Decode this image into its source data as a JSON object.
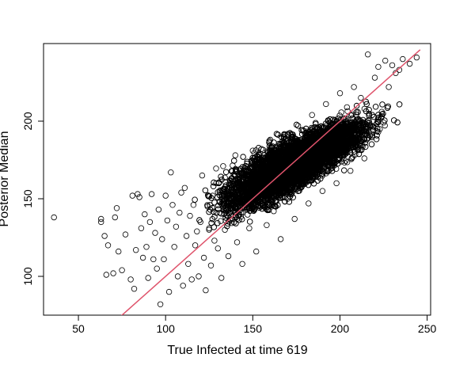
{
  "chart_data": {
    "type": "scatter",
    "title": "",
    "xlabel": "True Infected at time 619",
    "ylabel": "Posterior Median",
    "xlim": [
      30,
      252
    ],
    "ylim": [
      75,
      250
    ],
    "x_ticks": [
      50,
      100,
      150,
      200,
      250
    ],
    "y_ticks": [
      100,
      150,
      200
    ],
    "grid": false,
    "legend": "none",
    "marker": "open-circle",
    "point_color": "#000000",
    "reference_line": {
      "kind": "y=x",
      "color": "#DF536B",
      "from": [
        74,
        74
      ],
      "to": [
        246,
        246
      ]
    },
    "point_count_approx": 10000,
    "points": [
      [
        36,
        138
      ],
      [
        63,
        137
      ],
      [
        63,
        135
      ],
      [
        65,
        126
      ],
      [
        66,
        101
      ],
      [
        67,
        120
      ],
      [
        70,
        102
      ],
      [
        71,
        138
      ],
      [
        72,
        144
      ],
      [
        73,
        116
      ],
      [
        75,
        104
      ],
      [
        77,
        127
      ],
      [
        80,
        98
      ],
      [
        81,
        152
      ],
      [
        82,
        92
      ],
      [
        83,
        117
      ],
      [
        84,
        153
      ],
      [
        85,
        151
      ],
      [
        86,
        131
      ],
      [
        87,
        112
      ],
      [
        88,
        140
      ],
      [
        89,
        119
      ],
      [
        90,
        99
      ],
      [
        91,
        135
      ],
      [
        92,
        153
      ],
      [
        93,
        111
      ],
      [
        94,
        128
      ],
      [
        95,
        105
      ],
      [
        96,
        143
      ],
      [
        97,
        82
      ],
      [
        98,
        124
      ],
      [
        99,
        111
      ],
      [
        100,
        152
      ],
      [
        101,
        136
      ],
      [
        102,
        90
      ],
      [
        103,
        167
      ],
      [
        104,
        146
      ],
      [
        105,
        119
      ],
      [
        106,
        132
      ],
      [
        107,
        100
      ],
      [
        108,
        141
      ],
      [
        109,
        154
      ],
      [
        110,
        94
      ],
      [
        111,
        157
      ],
      [
        112,
        126
      ],
      [
        113,
        108
      ],
      [
        114,
        139
      ],
      [
        115,
        98
      ],
      [
        116,
        146
      ],
      [
        117,
        120
      ],
      [
        118,
        129
      ],
      [
        119,
        100
      ],
      [
        120,
        135
      ],
      [
        121,
        165
      ],
      [
        122,
        112
      ],
      [
        123,
        91
      ],
      [
        124,
        145
      ],
      [
        125,
        131
      ],
      [
        126,
        107
      ],
      [
        127,
        152
      ],
      [
        128,
        123
      ],
      [
        129,
        160
      ],
      [
        130,
        118
      ],
      [
        131,
        141
      ],
      [
        132,
        99
      ],
      [
        133,
        171
      ],
      [
        134,
        130
      ],
      [
        135,
        150
      ],
      [
        136,
        113
      ],
      [
        137,
        162
      ],
      [
        138,
        137
      ],
      [
        140,
        178
      ],
      [
        141,
        122
      ],
      [
        143,
        155
      ],
      [
        144,
        108
      ],
      [
        146,
        168
      ],
      [
        148,
        131
      ],
      [
        150,
        181
      ],
      [
        152,
        116
      ],
      [
        154,
        158
      ],
      [
        156,
        174
      ],
      [
        158,
        133
      ],
      [
        160,
        188
      ],
      [
        162,
        142
      ],
      [
        164,
        176
      ],
      [
        166,
        124
      ],
      [
        168,
        191
      ],
      [
        170,
        150
      ],
      [
        172,
        179
      ],
      [
        174,
        137
      ],
      [
        176,
        197
      ],
      [
        178,
        158
      ],
      [
        180,
        186
      ],
      [
        182,
        147
      ],
      [
        184,
        204
      ],
      [
        186,
        164
      ],
      [
        188,
        194
      ],
      [
        190,
        155
      ],
      [
        192,
        211
      ],
      [
        194,
        172
      ],
      [
        196,
        201
      ],
      [
        198,
        160
      ],
      [
        200,
        218
      ],
      [
        202,
        179
      ],
      [
        204,
        209
      ],
      [
        206,
        168
      ],
      [
        208,
        222
      ],
      [
        210,
        186
      ],
      [
        212,
        215
      ],
      [
        214,
        176
      ],
      [
        216,
        243
      ],
      [
        218,
        192
      ],
      [
        220,
        228
      ],
      [
        222,
        235
      ],
      [
        224,
        206
      ],
      [
        226,
        239
      ],
      [
        228,
        222
      ],
      [
        230,
        236
      ],
      [
        232,
        231
      ],
      [
        234,
        233
      ],
      [
        236,
        240
      ],
      [
        240,
        237
      ],
      [
        244,
        241
      ]
    ]
  }
}
